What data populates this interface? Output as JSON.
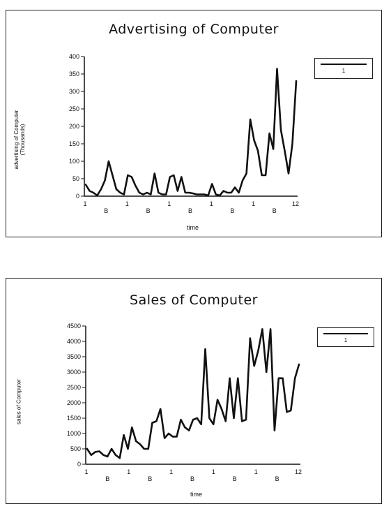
{
  "chart_data": [
    {
      "type": "line",
      "title": "Advertising of Computer",
      "ylabel_line1": "advertising of Computer",
      "ylabel_line2": "(Thousands)",
      "xlabel": "time",
      "ylim": [
        0,
        400
      ],
      "yticks": [
        0,
        50,
        100,
        150,
        200,
        250,
        300,
        350,
        400
      ],
      "xtick_labels": [
        "1",
        "B",
        "1",
        "B",
        "1",
        "B",
        "1",
        "B",
        "1",
        "B",
        "12"
      ],
      "legend": "1",
      "series": [
        {
          "name": "1",
          "values": [
            33,
            15,
            10,
            2,
            20,
            45,
            100,
            60,
            20,
            10,
            5,
            60,
            55,
            30,
            10,
            5,
            10,
            5,
            65,
            10,
            5,
            5,
            55,
            60,
            15,
            55,
            10,
            10,
            8,
            5,
            5,
            5,
            2,
            35,
            5,
            2,
            15,
            10,
            10,
            25,
            10,
            45,
            65,
            220,
            160,
            130,
            60,
            60,
            180,
            135,
            365,
            190,
            130,
            65,
            150,
            330
          ]
        }
      ]
    },
    {
      "type": "line",
      "title": "Sales of Computer",
      "ylabel_line1": "sales of Computer",
      "xlabel": "time",
      "ylim": [
        0,
        4500
      ],
      "yticks": [
        0,
        500,
        1000,
        1500,
        2000,
        2500,
        3000,
        3500,
        4000,
        4500
      ],
      "xtick_labels": [
        "1",
        "B",
        "1",
        "B",
        "1",
        "B",
        "1",
        "B",
        "1",
        "B",
        "12"
      ],
      "legend": "1",
      "series": [
        {
          "name": "1",
          "values": [
            500,
            300,
            400,
            420,
            300,
            250,
            500,
            300,
            200,
            950,
            500,
            1200,
            750,
            650,
            500,
            500,
            1350,
            1400,
            1800,
            850,
            1000,
            900,
            900,
            1450,
            1200,
            1100,
            1450,
            1500,
            1300,
            3750,
            1500,
            1300,
            2100,
            1800,
            1400,
            2800,
            1500,
            2800,
            1400,
            1450,
            4100,
            3200,
            3700,
            4400,
            3000,
            4400,
            1100,
            2800,
            2800,
            1700,
            1750,
            2800,
            3250
          ]
        }
      ]
    }
  ]
}
